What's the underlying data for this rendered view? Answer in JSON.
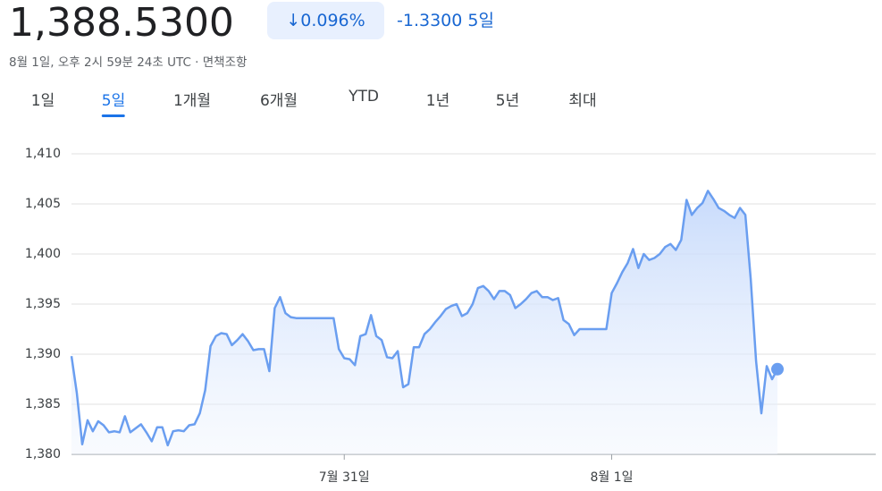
{
  "header": {
    "price": "1,388.5300",
    "change_percent": "↓0.096%",
    "change": "-1.3300",
    "period": "5일",
    "timestamp": "8월 1일, 오후 2시 59분 24초 UTC · 면책조항"
  },
  "tabs": {
    "items": [
      "1일",
      "5일",
      "1개월",
      "6개월",
      "YTD",
      "1년",
      "5년",
      "최대"
    ],
    "selected": 1
  },
  "chart_data": {
    "type": "area",
    "color": "#6a9ef0",
    "grid": true,
    "categories": [
      null,
      null,
      null,
      null,
      null,
      null,
      null,
      null,
      null,
      null,
      null,
      null,
      null,
      null,
      null,
      null,
      null,
      null,
      null,
      null,
      null,
      null,
      null,
      null,
      null,
      null,
      null,
      null,
      null,
      null,
      null,
      null,
      null,
      null,
      null,
      null,
      null,
      null,
      null,
      null,
      null,
      null,
      null,
      null,
      null,
      null,
      null,
      null,
      null,
      null,
      null,
      "7월 31일",
      null,
      null,
      null,
      null,
      null,
      null,
      null,
      null,
      null,
      null,
      null,
      null,
      null,
      null,
      null,
      null,
      null,
      null,
      null,
      null,
      null,
      null,
      null,
      null,
      null,
      null,
      null,
      null,
      null,
      null,
      null,
      null,
      null,
      null,
      null,
      null,
      null,
      null,
      null,
      null,
      null,
      null,
      null,
      null,
      null,
      null,
      null,
      null,
      null,
      "8월 1일",
      null,
      null,
      null,
      null,
      null,
      null,
      null,
      null,
      null,
      null,
      null,
      null,
      null,
      null,
      null,
      null,
      null,
      null,
      null,
      null,
      null,
      null,
      null,
      null,
      null,
      null,
      null,
      null,
      null,
      null,
      null
    ],
    "values": [
      1389.8,
      1386.1,
      1381.0,
      1383.4,
      1382.3,
      1383.3,
      1382.9,
      1382.2,
      1382.3,
      1382.2,
      1383.8,
      1382.2,
      1382.6,
      1383.0,
      1382.2,
      1381.3,
      1382.7,
      1382.7,
      1380.9,
      1382.3,
      1382.4,
      1382.3,
      1382.9,
      1383.0,
      1384.1,
      1386.4,
      1390.8,
      1391.8,
      1392.1,
      1392.0,
      1390.9,
      1391.4,
      1392.0,
      1391.3,
      1390.4,
      1390.5,
      1390.5,
      1388.3,
      1394.6,
      1395.7,
      1394.1,
      1393.7,
      1393.6,
      1393.6,
      1393.6,
      1393.6,
      1393.6,
      1393.6,
      1393.6,
      1393.6,
      1390.5,
      1389.6,
      1389.5,
      1388.9,
      1391.8,
      1392.0,
      1393.9,
      1391.8,
      1391.4,
      1389.7,
      1389.6,
      1390.3,
      1386.7,
      1387.0,
      1390.7,
      1390.7,
      1392.0,
      1392.5,
      1393.2,
      1393.8,
      1394.5,
      1394.8,
      1395.0,
      1393.8,
      1394.1,
      1395.0,
      1396.6,
      1396.8,
      1396.3,
      1395.5,
      1396.3,
      1396.3,
      1395.9,
      1394.6,
      1395.0,
      1395.5,
      1396.1,
      1396.3,
      1395.7,
      1395.7,
      1395.4,
      1395.6,
      1393.4,
      1393.0,
      1391.9,
      1392.5,
      1392.5,
      1392.5,
      1392.5,
      1392.5,
      1392.5,
      1396.1,
      1397.1,
      1398.2,
      1399.1,
      1400.5,
      1398.6,
      1400.0,
      1399.4,
      1399.6,
      1400.0,
      1400.7,
      1401.0,
      1400.4,
      1401.4,
      1405.4,
      1403.9,
      1404.6,
      1405.1,
      1406.3,
      1405.5,
      1404.6,
      1404.3,
      1403.9,
      1403.6,
      1404.6,
      1403.9,
      1397.5,
      1389.3,
      1384.1,
      1388.8,
      1387.5,
      1388.5
    ],
    "ylim": [
      1380,
      1410
    ],
    "yticks": [
      {
        "value": 1380,
        "label": "1,380"
      },
      {
        "value": 1385,
        "label": "1,385"
      },
      {
        "value": 1390,
        "label": "1,390"
      },
      {
        "value": 1395,
        "label": "1,395"
      },
      {
        "value": 1400,
        "label": "1,400"
      },
      {
        "value": 1405,
        "label": "1,405"
      },
      {
        "value": 1410,
        "label": "1,410"
      }
    ]
  }
}
